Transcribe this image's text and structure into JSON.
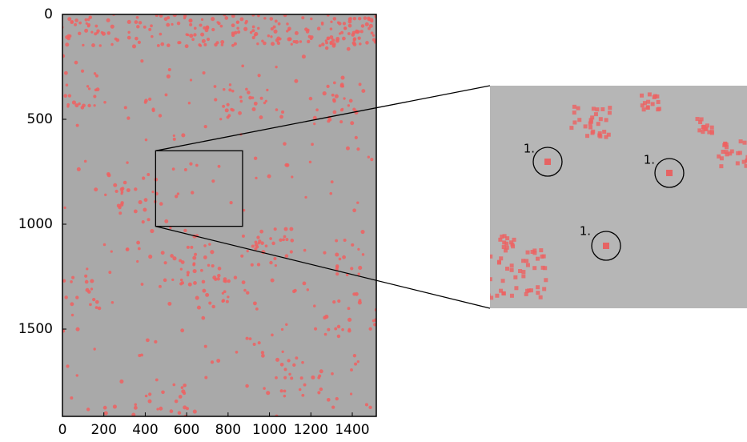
{
  "chart_data": {
    "type": "image",
    "xlim": [
      0,
      1516
    ],
    "ylim": [
      1916,
      0
    ],
    "xticks": [
      0,
      200,
      400,
      600,
      800,
      1000,
      1200,
      1400
    ],
    "yticks": [
      0,
      500,
      1000,
      1500
    ],
    "zoom": {
      "xlim": [
        450,
        870
      ],
      "ylim": [
        650,
        1010
      ]
    },
    "annotations": [
      "1.",
      "1.",
      "1."
    ]
  }
}
